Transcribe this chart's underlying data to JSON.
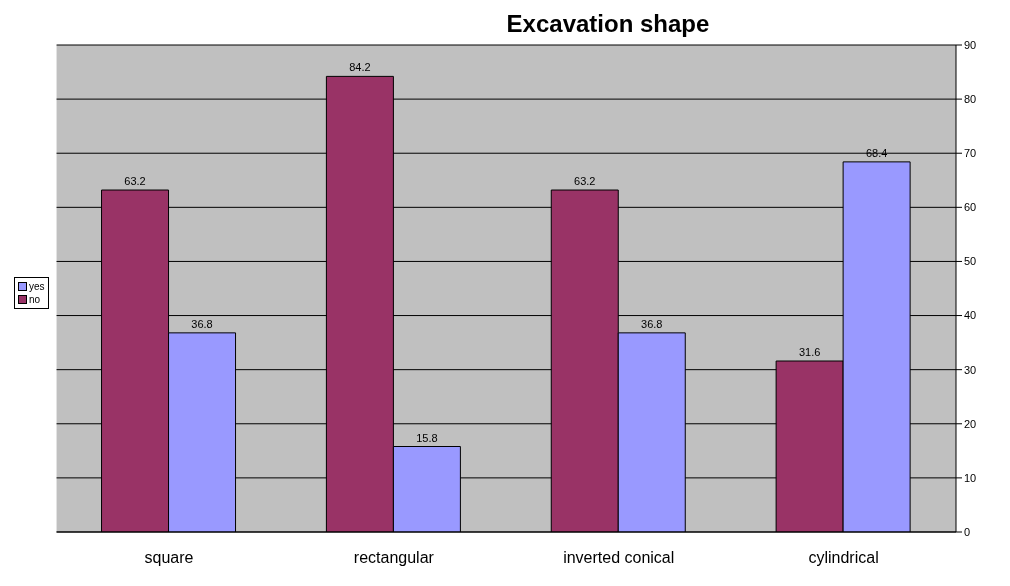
{
  "chart_data": {
    "type": "bar",
    "title": "Excavation shape",
    "categories": [
      "square",
      "rectangular",
      "inverted conical",
      "cylindrical"
    ],
    "series": [
      {
        "name": "no",
        "color": "#993366",
        "values": [
          63.2,
          84.2,
          63.2,
          31.6
        ]
      },
      {
        "name": "yes",
        "color": "#9999ff",
        "values": [
          36.8,
          15.8,
          36.8,
          68.4
        ]
      }
    ],
    "ylim": [
      0,
      90
    ],
    "yticks": [
      0,
      10,
      20,
      30,
      40,
      50,
      60,
      70,
      80,
      90
    ],
    "grid": "y",
    "legend": "left",
    "data_labels": true
  }
}
